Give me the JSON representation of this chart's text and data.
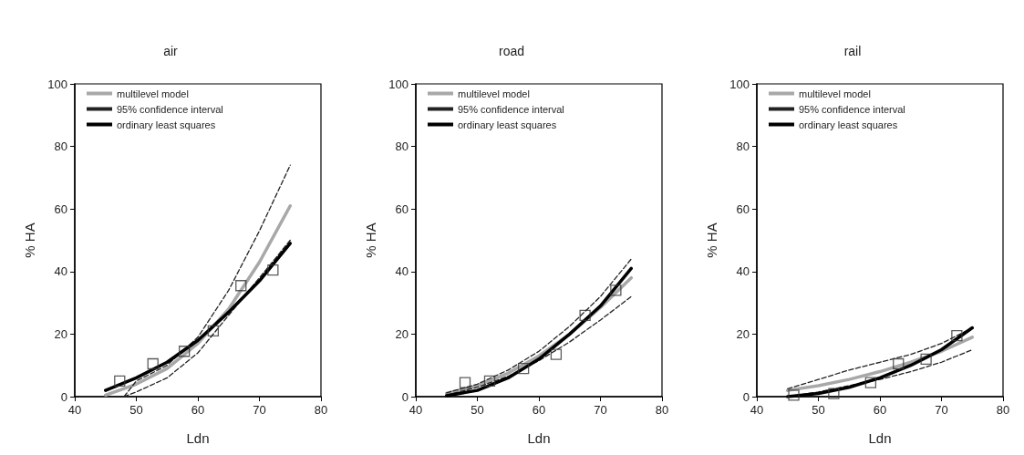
{
  "chart_data": [
    {
      "type": "line",
      "title": "air",
      "xlabel": "Ldn",
      "ylabel": "% HA",
      "xlim": [
        40,
        80
      ],
      "xticks": [
        40,
        50,
        60,
        70,
        80
      ],
      "ylim": [
        0,
        100
      ],
      "yticks": [
        0,
        20,
        40,
        60,
        80,
        100
      ],
      "grid": false,
      "legend": "top left",
      "series": [
        {
          "name": "multilevel model",
          "color": "#a8a8a8",
          "line_style": "solid",
          "x": [
            45,
            50,
            55,
            60,
            65,
            70,
            75
          ],
          "values": [
            0.5,
            4,
            9,
            17,
            28,
            43,
            61
          ]
        },
        {
          "name": "95% confidence interval",
          "color": "#222222",
          "line_style": "dashed",
          "x": [
            48,
            50,
            55,
            60,
            65,
            70,
            75
          ],
          "values": [
            0,
            5,
            10,
            19,
            34,
            53,
            74
          ]
        },
        {
          "color": "#222222",
          "line_style": "dashed",
          "x": [
            48,
            50,
            55,
            60,
            65,
            70,
            75
          ],
          "values": [
            0,
            1.5,
            6,
            14,
            26,
            38,
            50
          ]
        },
        {
          "name": "ordinary least squares",
          "color": "#000000",
          "line_style": "solid",
          "x": [
            45,
            50,
            55,
            60,
            65,
            70,
            75
          ],
          "values": [
            2,
            6,
            11,
            18,
            27,
            37,
            49
          ]
        },
        {
          "type": "scatter",
          "marker": "square",
          "color": "#333333",
          "x": [
            47.3,
            52.7,
            57.8,
            62.5,
            67,
            72.2
          ],
          "values": [
            5,
            10.5,
            14.5,
            21,
            35.5,
            40.5
          ]
        }
      ]
    },
    {
      "type": "line",
      "title": "road",
      "xlabel": "Ldn",
      "ylabel": "% HA",
      "xlim": [
        40,
        80
      ],
      "xticks": [
        40,
        50,
        60,
        70,
        80
      ],
      "ylim": [
        0,
        100
      ],
      "yticks": [
        0,
        20,
        40,
        60,
        80,
        100
      ],
      "grid": false,
      "legend": "top left",
      "series": [
        {
          "name": "multilevel model",
          "color": "#a8a8a8",
          "line_style": "solid",
          "x": [
            45,
            50,
            55,
            60,
            65,
            70,
            75
          ],
          "values": [
            1,
            3.5,
            7.5,
            13,
            20,
            28.5,
            38
          ]
        },
        {
          "name": "95% confidence interval",
          "color": "#222222",
          "line_style": "dashed",
          "x": [
            45,
            50,
            55,
            60,
            65,
            70,
            75
          ],
          "values": [
            1.2,
            4,
            8.5,
            14.5,
            22.5,
            32,
            44
          ]
        },
        {
          "color": "#222222",
          "line_style": "dashed",
          "x": [
            45,
            50,
            55,
            60,
            65,
            70,
            75
          ],
          "values": [
            0.5,
            3,
            6.5,
            11.5,
            17.5,
            24.5,
            32
          ]
        },
        {
          "name": "ordinary least squares",
          "color": "#000000",
          "line_style": "solid",
          "x": [
            45,
            50,
            55,
            60,
            65,
            70,
            75
          ],
          "values": [
            0.3,
            2,
            6,
            12,
            20,
            29,
            41
          ]
        },
        {
          "type": "scatter",
          "marker": "square",
          "color": "#333333",
          "x": [
            48,
            52,
            57.5,
            62.8,
            67.5,
            72.5
          ],
          "values": [
            4.5,
            5,
            9,
            13.5,
            26,
            34
          ]
        }
      ]
    },
    {
      "type": "line",
      "title": "rail",
      "xlabel": "Ldn",
      "ylabel": "% HA",
      "xlim": [
        40,
        80
      ],
      "xticks": [
        40,
        50,
        60,
        70,
        80
      ],
      "ylim": [
        0,
        100
      ],
      "yticks": [
        0,
        20,
        40,
        60,
        80,
        100
      ],
      "grid": false,
      "legend": "top left",
      "series": [
        {
          "name": "multilevel model",
          "color": "#a8a8a8",
          "line_style": "solid",
          "x": [
            45,
            50,
            55,
            60,
            65,
            70,
            75
          ],
          "values": [
            2,
            3.5,
            5.5,
            8,
            11,
            14.5,
            19
          ]
        },
        {
          "name": "95% confidence interval",
          "color": "#222222",
          "line_style": "dashed",
          "x": [
            45,
            50,
            55,
            60,
            65,
            70,
            75
          ],
          "values": [
            2.5,
            5.5,
            8.5,
            11,
            13.5,
            17,
            22
          ]
        },
        {
          "color": "#222222",
          "line_style": "dashed",
          "x": [
            45,
            50,
            55,
            60,
            65,
            70,
            75
          ],
          "values": [
            0,
            1.5,
            3.5,
            5.5,
            8,
            11,
            15
          ]
        },
        {
          "name": "ordinary least squares",
          "color": "#000000",
          "line_style": "solid",
          "x": [
            45,
            50,
            55,
            60,
            65,
            70,
            75
          ],
          "values": [
            0,
            1,
            3,
            6,
            10,
            15,
            22
          ]
        },
        {
          "type": "scatter",
          "marker": "square",
          "color": "#333333",
          "x": [
            46,
            52.5,
            58.5,
            63,
            67.5,
            72.5
          ],
          "values": [
            0.5,
            1,
            4.5,
            10.5,
            12,
            19.5
          ]
        }
      ]
    }
  ]
}
